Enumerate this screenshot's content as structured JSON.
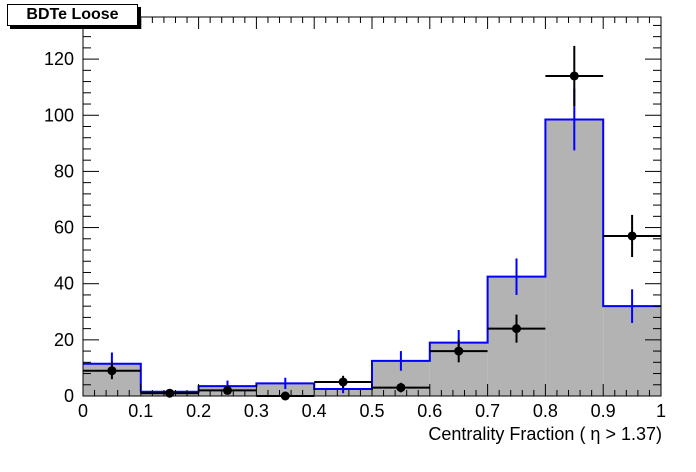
{
  "chart_data": {
    "type": "bar",
    "title": "BDTe Loose",
    "xlabel": "Centrality Fraction (  η > 1.37)",
    "ylabel": "",
    "xlim": [
      0,
      1
    ],
    "ylim": [
      0,
      135
    ],
    "x_ticks": [
      "0",
      "0.1",
      "0.2",
      "0.3",
      "0.4",
      "0.5",
      "0.6",
      "0.7",
      "0.8",
      "0.9",
      "1"
    ],
    "y_ticks": [
      "0",
      "20",
      "40",
      "60",
      "80",
      "100",
      "120"
    ],
    "bin_edges": [
      0,
      0.1,
      0.2,
      0.3,
      0.4,
      0.5,
      0.6,
      0.7,
      0.8,
      0.9,
      1.0
    ],
    "series": [
      {
        "style": "filled-histogram",
        "values": [
          11.5,
          1.5,
          3.5,
          4.5,
          2.5,
          12.5,
          19,
          42.5,
          98.5,
          32
        ],
        "errors": [
          4,
          1,
          2,
          2,
          1.5,
          3.5,
          4.5,
          6.5,
          11,
          6
        ]
      },
      {
        "style": "points-with-errors",
        "values": [
          9,
          1,
          2,
          0,
          5,
          3,
          16,
          24,
          114,
          57
        ],
        "errors": [
          3,
          1,
          1.5,
          0,
          2.2,
          1.7,
          4,
          5,
          10.7,
          7.5
        ]
      }
    ],
    "colors": {
      "fill": "#b3b3b3",
      "outline": "#0000ff",
      "points": "#000000"
    },
    "grid": false,
    "legend": "none"
  }
}
